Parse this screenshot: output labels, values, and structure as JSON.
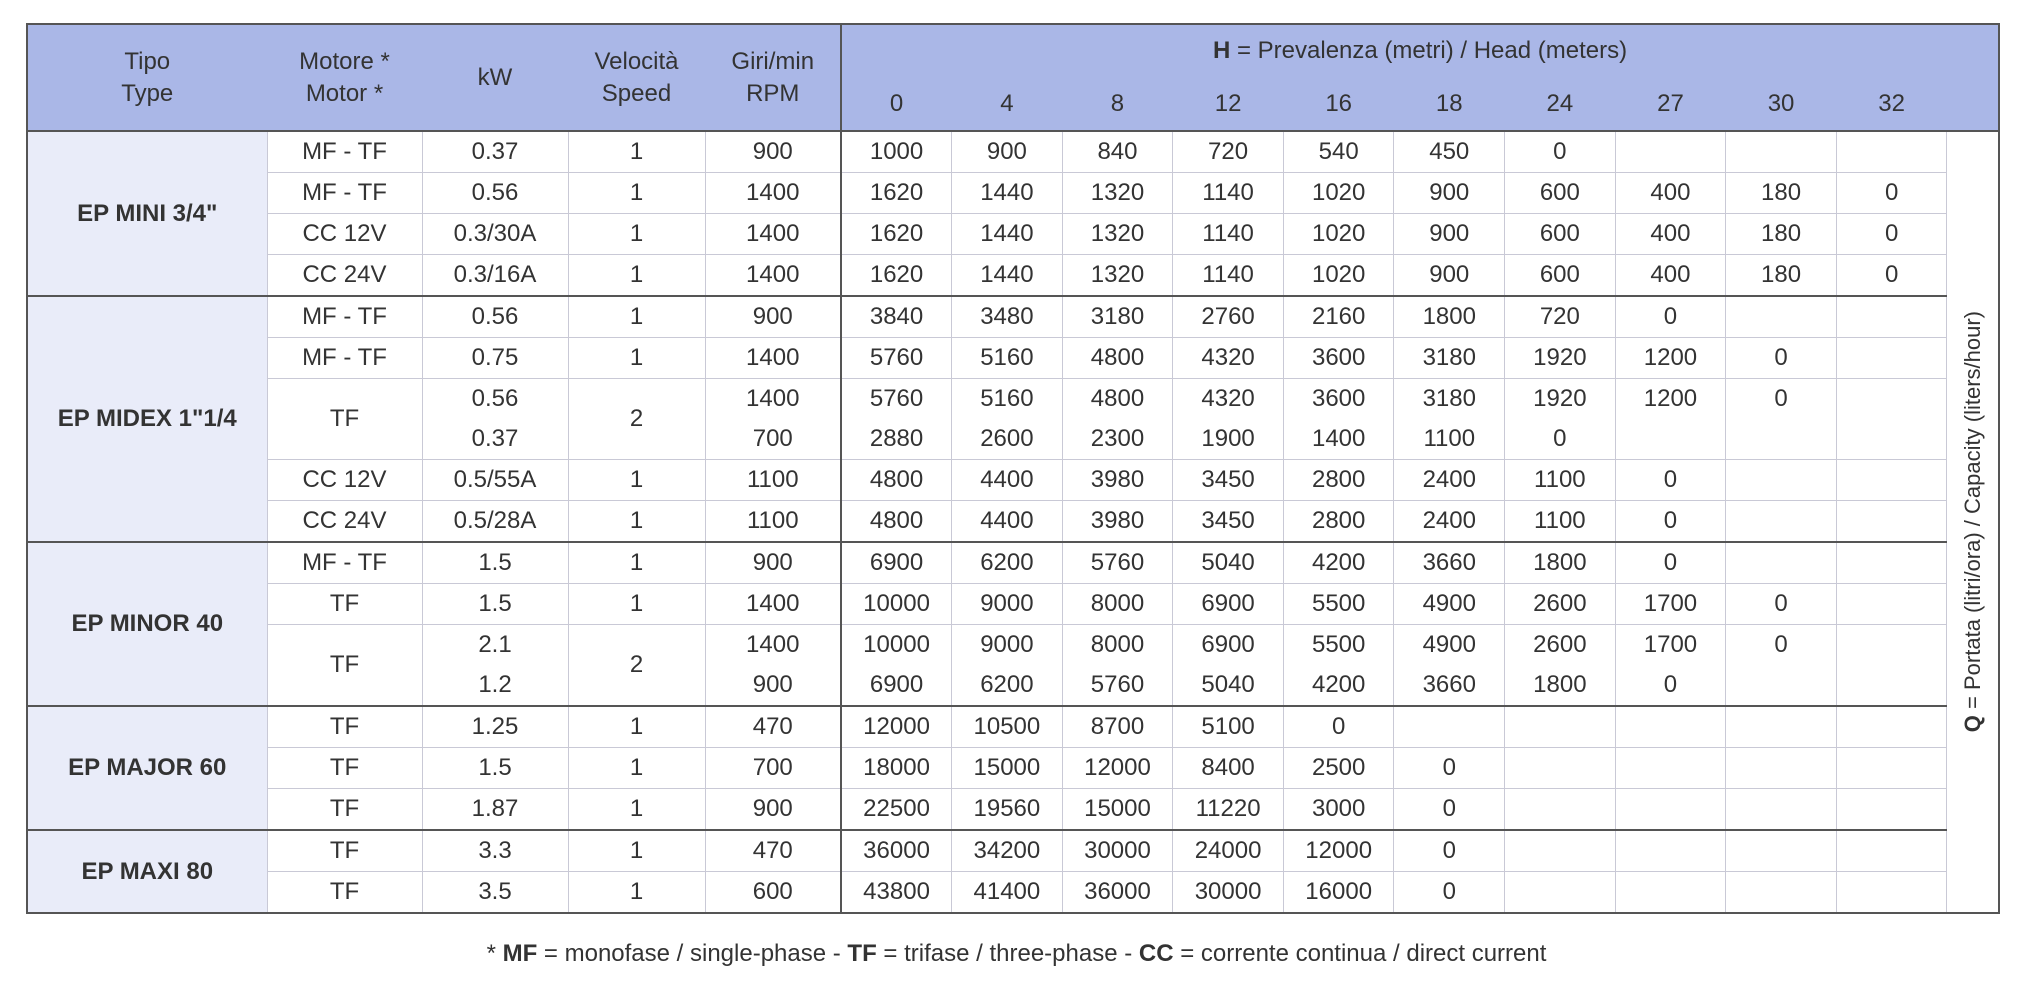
{
  "header": {
    "tipo": [
      "Tipo",
      "Type"
    ],
    "motore": [
      "Motore *",
      "Motor *"
    ],
    "kw": "kW",
    "velocita": [
      "Velocità",
      "Speed"
    ],
    "giri": [
      "Giri/min",
      "RPM"
    ],
    "head_title": [
      "H",
      " = Prevalenza (metri) / Head (meters)"
    ],
    "heads": [
      "0",
      "4",
      "8",
      "12",
      "16",
      "18",
      "24",
      "27",
      "30",
      "32"
    ]
  },
  "side_label": [
    "Q",
    " = Portata (litri/ora) / Capacity (liters/hour)"
  ],
  "groups": [
    {
      "name": "EP MINI 3/4\"",
      "rows": [
        {
          "motor": "MF - TF",
          "speed": "1",
          "lines": [
            {
              "kw": "0.37",
              "rpm": "900",
              "q": [
                "1000",
                "900",
                "840",
                "720",
                "540",
                "450",
                "0"
              ]
            }
          ]
        },
        {
          "motor": "MF - TF",
          "speed": "1",
          "lines": [
            {
              "kw": "0.56",
              "rpm": "1400",
              "q": [
                "1620",
                "1440",
                "1320",
                "1140",
                "1020",
                "900",
                "600",
                "400",
                "180",
                "0"
              ]
            }
          ]
        },
        {
          "motor": "CC 12V",
          "speed": "1",
          "lines": [
            {
              "kw": "0.3/30A",
              "rpm": "1400",
              "q": [
                "1620",
                "1440",
                "1320",
                "1140",
                "1020",
                "900",
                "600",
                "400",
                "180",
                "0"
              ]
            }
          ]
        },
        {
          "motor": "CC 24V",
          "speed": "1",
          "lines": [
            {
              "kw": "0.3/16A",
              "rpm": "1400",
              "q": [
                "1620",
                "1440",
                "1320",
                "1140",
                "1020",
                "900",
                "600",
                "400",
                "180",
                "0"
              ]
            }
          ]
        }
      ]
    },
    {
      "name": "EP MIDEX 1\"1/4",
      "rows": [
        {
          "motor": "MF - TF",
          "speed": "1",
          "lines": [
            {
              "kw": "0.56",
              "rpm": "900",
              "q": [
                "3840",
                "3480",
                "3180",
                "2760",
                "2160",
                "1800",
                "720",
                "0"
              ]
            }
          ]
        },
        {
          "motor": "MF - TF",
          "speed": "1",
          "lines": [
            {
              "kw": "0.75",
              "rpm": "1400",
              "q": [
                "5760",
                "5160",
                "4800",
                "4320",
                "3600",
                "3180",
                "1920",
                "1200",
                "0"
              ]
            }
          ]
        },
        {
          "motor": "TF",
          "speed": "2",
          "lines": [
            {
              "kw": "0.56",
              "rpm": "1400",
              "q": [
                "5760",
                "5160",
                "4800",
                "4320",
                "3600",
                "3180",
                "1920",
                "1200",
                "0"
              ]
            },
            {
              "kw": "0.37",
              "rpm": "700",
              "q": [
                "2880",
                "2600",
                "2300",
                "1900",
                "1400",
                "1100",
                "0"
              ]
            }
          ]
        },
        {
          "motor": "CC 12V",
          "speed": "1",
          "lines": [
            {
              "kw": "0.5/55A",
              "rpm": "1100",
              "q": [
                "4800",
                "4400",
                "3980",
                "3450",
                "2800",
                "2400",
                "1100",
                "0"
              ]
            }
          ]
        },
        {
          "motor": "CC 24V",
          "speed": "1",
          "lines": [
            {
              "kw": "0.5/28A",
              "rpm": "1100",
              "q": [
                "4800",
                "4400",
                "3980",
                "3450",
                "2800",
                "2400",
                "1100",
                "0"
              ]
            }
          ]
        }
      ]
    },
    {
      "name": "EP MINOR 40",
      "rows": [
        {
          "motor": "MF - TF",
          "speed": "1",
          "lines": [
            {
              "kw": "1.5",
              "rpm": "900",
              "q": [
                "6900",
                "6200",
                "5760",
                "5040",
                "4200",
                "3660",
                "1800",
                "0"
              ]
            }
          ]
        },
        {
          "motor": "TF",
          "speed": "1",
          "lines": [
            {
              "kw": "1.5",
              "rpm": "1400",
              "q": [
                "10000",
                "9000",
                "8000",
                "6900",
                "5500",
                "4900",
                "2600",
                "1700",
                "0"
              ]
            }
          ]
        },
        {
          "motor": "TF",
          "speed": "2",
          "lines": [
            {
              "kw": "2.1",
              "rpm": "1400",
              "q": [
                "10000",
                "9000",
                "8000",
                "6900",
                "5500",
                "4900",
                "2600",
                "1700",
                "0"
              ]
            },
            {
              "kw": "1.2",
              "rpm": "900",
              "q": [
                "6900",
                "6200",
                "5760",
                "5040",
                "4200",
                "3660",
                "1800",
                "0"
              ]
            }
          ]
        }
      ]
    },
    {
      "name": "EP MAJOR 60",
      "rows": [
        {
          "motor": "TF",
          "speed": "1",
          "lines": [
            {
              "kw": "1.25",
              "rpm": "470",
              "q": [
                "12000",
                "10500",
                "8700",
                "5100",
                "0"
              ]
            }
          ]
        },
        {
          "motor": "TF",
          "speed": "1",
          "lines": [
            {
              "kw": "1.5",
              "rpm": "700",
              "q": [
                "18000",
                "15000",
                "12000",
                "8400",
                "2500",
                "0"
              ]
            }
          ]
        },
        {
          "motor": "TF",
          "speed": "1",
          "lines": [
            {
              "kw": "1.87",
              "rpm": "900",
              "q": [
                "22500",
                "19560",
                "15000",
                "11220",
                "3000",
                "0"
              ]
            }
          ]
        }
      ]
    },
    {
      "name": "EP MAXI 80",
      "rows": [
        {
          "motor": "TF",
          "speed": "1",
          "lines": [
            {
              "kw": "3.3",
              "rpm": "470",
              "q": [
                "36000",
                "34200",
                "30000",
                "24000",
                "12000",
                "0"
              ]
            }
          ]
        },
        {
          "motor": "TF",
          "speed": "1",
          "lines": [
            {
              "kw": "3.5",
              "rpm": "600",
              "q": [
                "43800",
                "41400",
                "36000",
                "30000",
                "16000",
                "0"
              ]
            }
          ]
        }
      ]
    }
  ],
  "footnote": [
    "* ",
    "MF",
    " = monofase / single-phase - ",
    "TF",
    " = trifase / three-phase - ",
    "CC",
    " = corrente continua / direct current"
  ]
}
